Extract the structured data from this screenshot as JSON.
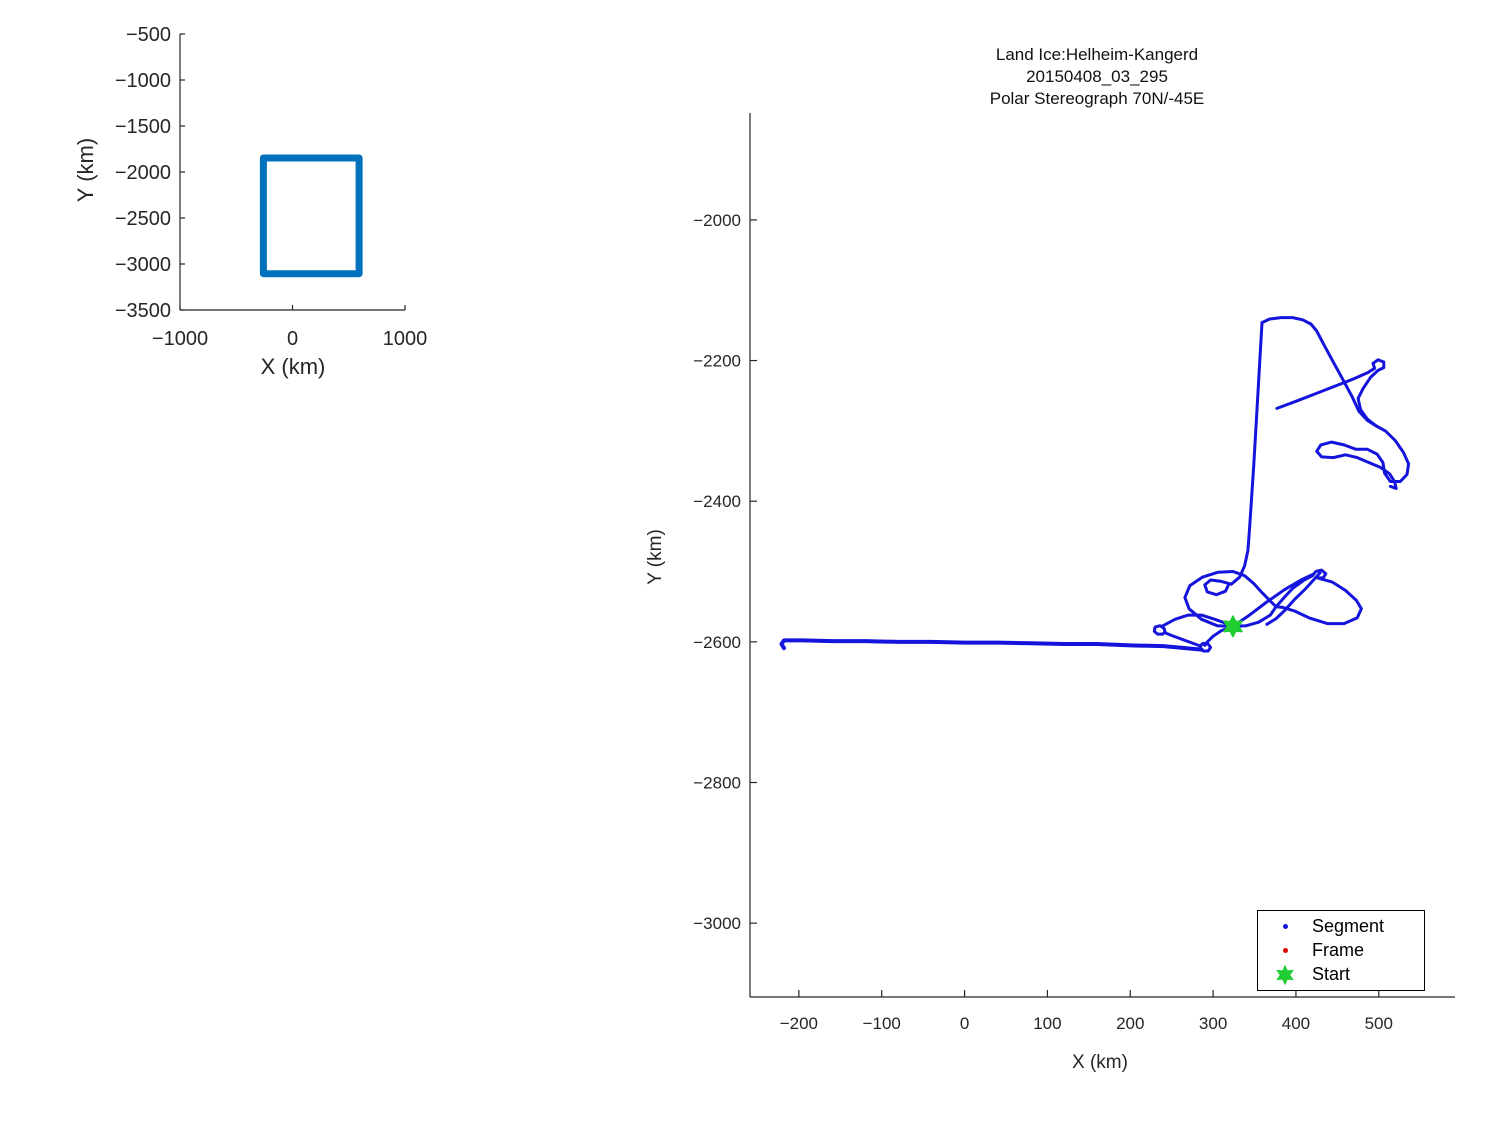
{
  "title": {
    "line1": "Land Ice:Helheim-Kangerd",
    "line2": "20150408_03_295",
    "line3": "Polar Stereograph 70N/-45E"
  },
  "colors": {
    "track": "#1414DC",
    "coverage_box": "#0072BD",
    "start_marker": "#22CC33",
    "frame_marker": "#E00000",
    "axis": "#262626",
    "background": "#FFFFFF"
  },
  "legend": {
    "items": [
      {
        "label": "Segment",
        "marker": "dot",
        "color": "#1414DC",
        "size": 5
      },
      {
        "label": "Frame",
        "marker": "dot",
        "color": "#E00000",
        "size": 5
      },
      {
        "label": "Start",
        "marker": "hexagram",
        "color": "#22CC33",
        "size": 17
      }
    ]
  },
  "chart_data": [
    {
      "id": "inset",
      "type": "line",
      "title": "",
      "xlabel": "X (km)",
      "ylabel": "Y (km)",
      "xlim": [
        -1000,
        1000
      ],
      "ylim": [
        -3500,
        -500
      ],
      "xticks": [
        -1000,
        0,
        1000
      ],
      "yticks": [
        -3500,
        -3000,
        -2500,
        -2000,
        -1500,
        -1000,
        -500
      ],
      "grid": false,
      "tick_font_px": 20,
      "tick_len": 5,
      "series": [
        {
          "name": "main-view-coverage-box",
          "color": "#0072BD",
          "linewidth": 7,
          "points": [
            [
              -259,
              -1848
            ],
            [
              592,
              -1848
            ],
            [
              592,
              -3105
            ],
            [
              -259,
              -3105
            ],
            [
              -259,
              -1848
            ]
          ]
        }
      ],
      "markers": []
    },
    {
      "id": "main",
      "type": "line",
      "title": "Land Ice:Helheim-Kangerd 20150408_03_295 Polar Stereograph 70N/-45E",
      "xlabel": "X (km)",
      "ylabel": "Y (km)",
      "xlim": [
        -259,
        592
      ],
      "ylim": [
        -3105,
        -1848
      ],
      "xticks": [
        -200,
        -100,
        0,
        100,
        200,
        300,
        400,
        500
      ],
      "yticks": [
        -3000,
        -2800,
        -2600,
        -2400,
        -2200,
        -2000
      ],
      "grid": false,
      "tick_font_px": 17,
      "tick_len": 7,
      "legend_position": "bottom-right",
      "series": [
        {
          "name": "transit-line",
          "color": "#1414DC",
          "linewidth": 4,
          "points": [
            [
              -218,
              -2609
            ],
            [
              -221,
              -2603
            ],
            [
              -218,
              -2598
            ],
            [
              -195,
              -2598
            ],
            [
              -160,
              -2599
            ],
            [
              -120,
              -2599
            ],
            [
              -80,
              -2600
            ],
            [
              -40,
              -2600
            ],
            [
              0,
              -2601
            ],
            [
              40,
              -2601
            ],
            [
              80,
              -2602
            ],
            [
              120,
              -2603
            ],
            [
              160,
              -2603
            ],
            [
              200,
              -2605
            ],
            [
              240,
              -2606
            ],
            [
              268,
              -2609
            ],
            [
              286,
              -2611
            ]
          ]
        },
        {
          "name": "turn-loop-east",
          "color": "#1414DC",
          "linewidth": 3,
          "points": [
            [
              286,
              -2611
            ],
            [
              284,
              -2606
            ],
            [
              288,
              -2602
            ],
            [
              294,
              -2603
            ],
            [
              297,
              -2608
            ],
            [
              294,
              -2613
            ],
            [
              288,
              -2613
            ],
            [
              285,
              -2609
            ]
          ]
        },
        {
          "name": "link-between-loops",
          "color": "#1414DC",
          "linewidth": 3,
          "points": [
            [
              285,
              -2606
            ],
            [
              266,
              -2598
            ],
            [
              250,
              -2591
            ],
            [
              242,
              -2587
            ]
          ]
        },
        {
          "name": "turn-loop-west",
          "color": "#1414DC",
          "linewidth": 3,
          "points": [
            [
              242,
              -2587
            ],
            [
              241,
              -2581
            ],
            [
              236,
              -2577
            ],
            [
              230,
              -2579
            ],
            [
              229,
              -2585
            ],
            [
              233,
              -2589
            ],
            [
              239,
              -2589
            ],
            [
              242,
              -2586
            ]
          ]
        },
        {
          "name": "loop-to-start",
          "color": "#1414DC",
          "linewidth": 3,
          "points": [
            [
              238,
              -2578
            ],
            [
              254,
              -2568
            ],
            [
              270,
              -2562
            ],
            [
              286,
              -2562
            ],
            [
              302,
              -2568
            ],
            [
              314,
              -2573
            ],
            [
              324,
              -2578
            ]
          ]
        },
        {
          "name": "start-to-loop",
          "color": "#1414DC",
          "linewidth": 3,
          "points": [
            [
              324,
              -2578
            ],
            [
              310,
              -2584
            ],
            [
              300,
              -2592
            ],
            [
              293,
              -2600
            ],
            [
              290,
              -2605
            ]
          ]
        },
        {
          "name": "west-flower-loop",
          "color": "#1414DC",
          "linewidth": 3,
          "points": [
            [
              324,
              -2578
            ],
            [
              305,
              -2577
            ],
            [
              286,
              -2568
            ],
            [
              271,
              -2553
            ],
            [
              266,
              -2537
            ],
            [
              272,
              -2520
            ],
            [
              287,
              -2508
            ],
            [
              306,
              -2501
            ],
            [
              324,
              -2500
            ],
            [
              338,
              -2506
            ],
            [
              349,
              -2517
            ],
            [
              359,
              -2530
            ],
            [
              369,
              -2542
            ],
            [
              376,
              -2550
            ],
            [
              369,
              -2562
            ],
            [
              355,
              -2572
            ],
            [
              340,
              -2577
            ],
            [
              324,
              -2578
            ]
          ]
        },
        {
          "name": "east-flower-loop",
          "color": "#1414DC",
          "linewidth": 3,
          "points": [
            [
              376,
              -2550
            ],
            [
              385,
              -2538
            ],
            [
              396,
              -2524
            ],
            [
              410,
              -2512
            ],
            [
              420,
              -2506
            ],
            [
              424,
              -2500
            ],
            [
              431,
              -2498
            ],
            [
              436,
              -2503
            ],
            [
              433,
              -2509
            ],
            [
              426,
              -2509
            ],
            [
              444,
              -2515
            ],
            [
              460,
              -2527
            ],
            [
              473,
              -2541
            ],
            [
              479,
              -2553
            ],
            [
              474,
              -2566
            ],
            [
              458,
              -2574
            ],
            [
              438,
              -2574
            ],
            [
              416,
              -2566
            ],
            [
              398,
              -2556
            ],
            [
              384,
              -2551
            ],
            [
              376,
              -2550
            ]
          ]
        },
        {
          "name": "start-diagonal-out",
          "color": "#1414DC",
          "linewidth": 3,
          "points": [
            [
              324,
              -2578
            ],
            [
              344,
              -2562
            ],
            [
              364,
              -2544
            ],
            [
              386,
              -2526
            ],
            [
              406,
              -2512
            ],
            [
              421,
              -2504
            ]
          ]
        },
        {
          "name": "circle-diagonal-back",
          "color": "#1414DC",
          "linewidth": 3,
          "points": [
            [
              429,
              -2502
            ],
            [
              412,
              -2524
            ],
            [
              398,
              -2540
            ],
            [
              386,
              -2556
            ],
            [
              376,
              -2567
            ],
            [
              365,
              -2575
            ]
          ]
        },
        {
          "name": "north-leg",
          "color": "#1414DC",
          "linewidth": 3,
          "points": [
            [
              359,
              -2146
            ],
            [
              354,
              -2250
            ],
            [
              349,
              -2350
            ],
            [
              344,
              -2440
            ],
            [
              342,
              -2470
            ],
            [
              338,
              -2492
            ],
            [
              332,
              -2508
            ],
            [
              322,
              -2518
            ],
            [
              310,
              -2514
            ],
            [
              297,
              -2512
            ],
            [
              290,
              -2519
            ],
            [
              293,
              -2529
            ],
            [
              304,
              -2533
            ],
            [
              315,
              -2528
            ],
            [
              319,
              -2518
            ]
          ]
        },
        {
          "name": "summit-arc",
          "color": "#1414DC",
          "linewidth": 3,
          "points": [
            [
              359,
              -2146
            ],
            [
              368,
              -2141
            ],
            [
              382,
              -2139
            ],
            [
              396,
              -2139
            ],
            [
              408,
              -2142
            ],
            [
              418,
              -2148
            ],
            [
              425,
              -2158
            ],
            [
              434,
              -2178
            ],
            [
              446,
              -2204
            ],
            [
              458,
              -2230
            ],
            [
              468,
              -2252
            ],
            [
              476,
              -2272
            ],
            [
              486,
              -2285
            ],
            [
              497,
              -2293
            ]
          ]
        },
        {
          "name": "cross-diagonal-with-loop",
          "color": "#1414DC",
          "linewidth": 3,
          "points": [
            [
              377,
              -2268
            ],
            [
              400,
              -2258
            ],
            [
              424,
              -2247
            ],
            [
              448,
              -2236
            ],
            [
              470,
              -2226
            ],
            [
              487,
              -2217
            ],
            [
              495,
              -2211
            ],
            [
              493,
              -2204
            ],
            [
              499,
              -2199
            ],
            [
              506,
              -2202
            ],
            [
              506,
              -2210
            ],
            [
              499,
              -2214
            ],
            [
              490,
              -2224
            ],
            [
              481,
              -2240
            ],
            [
              475,
              -2254
            ],
            [
              478,
              -2270
            ],
            [
              486,
              -2283
            ],
            [
              497,
              -2293
            ]
          ]
        },
        {
          "name": "east-squiggle",
          "color": "#1414DC",
          "linewidth": 3,
          "points": [
            [
              497,
              -2293
            ],
            [
              508,
              -2300
            ],
            [
              520,
              -2314
            ],
            [
              530,
              -2331
            ],
            [
              536,
              -2347
            ],
            [
              534,
              -2362
            ],
            [
              526,
              -2372
            ],
            [
              514,
              -2372
            ],
            [
              507,
              -2360
            ],
            [
              505,
              -2345
            ],
            [
              498,
              -2333
            ],
            [
              486,
              -2326
            ],
            [
              472,
              -2326
            ],
            [
              458,
              -2320
            ],
            [
              443,
              -2316
            ],
            [
              430,
              -2320
            ],
            [
              425,
              -2329
            ],
            [
              431,
              -2337
            ],
            [
              445,
              -2338
            ],
            [
              460,
              -2334
            ],
            [
              474,
              -2338
            ],
            [
              488,
              -2345
            ],
            [
              502,
              -2352
            ],
            [
              513,
              -2361
            ],
            [
              519,
              -2372
            ],
            [
              521,
              -2382
            ],
            [
              514,
              -2379
            ]
          ]
        }
      ],
      "markers": [
        {
          "name": "start-point",
          "shape": "hexagram",
          "x": 324,
          "y": -2578,
          "size": 10,
          "color": "#22CC33"
        }
      ]
    }
  ]
}
